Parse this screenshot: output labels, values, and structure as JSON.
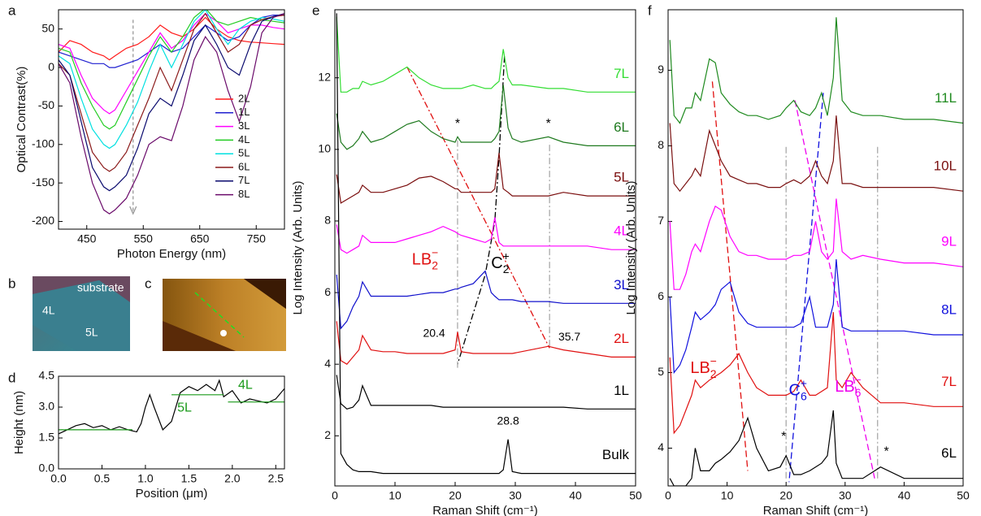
{
  "chart_data": [
    {
      "type": "line",
      "panel": "a",
      "xlabel": "Photon Energy (nm)",
      "ylabel": "Optical Contrast(%)",
      "xlim": [
        400,
        800
      ],
      "ylim": [
        -210,
        75
      ],
      "xticks": [
        450,
        550,
        650,
        750
      ],
      "yticks": [
        -200,
        -150,
        -100,
        -50,
        0,
        50
      ],
      "legend": "right",
      "x": [
        400,
        420,
        440,
        460,
        480,
        490,
        500,
        520,
        540,
        560,
        580,
        600,
        620,
        640,
        660,
        680,
        700,
        720,
        740,
        760,
        780,
        800
      ],
      "series": [
        {
          "name": "2L",
          "color": "#ff1a1a",
          "values": [
            20,
            35,
            30,
            20,
            15,
            10,
            15,
            25,
            30,
            40,
            55,
            45,
            40,
            50,
            65,
            50,
            40,
            35,
            33,
            32,
            31,
            30
          ]
        },
        {
          "name": "1L",
          "color": "#1f1fd0",
          "values": [
            20,
            15,
            10,
            5,
            5,
            0,
            0,
            5,
            10,
            20,
            30,
            20,
            25,
            40,
            55,
            45,
            35,
            40,
            55,
            65,
            68,
            68
          ]
        },
        {
          "name": "3L",
          "color": "#ff00ff",
          "values": [
            30,
            25,
            -10,
            -40,
            -55,
            -60,
            -55,
            -30,
            -5,
            20,
            45,
            25,
            35,
            55,
            70,
            60,
            45,
            50,
            55,
            55,
            52,
            50
          ]
        },
        {
          "name": "4L",
          "color": "#22cc22",
          "values": [
            25,
            20,
            -20,
            -50,
            -75,
            -80,
            -75,
            -45,
            -15,
            15,
            40,
            20,
            40,
            65,
            77,
            60,
            55,
            60,
            65,
            62,
            60,
            58
          ]
        },
        {
          "name": "5L",
          "color": "#00e0e0",
          "values": [
            15,
            5,
            -40,
            -80,
            -100,
            -105,
            -100,
            -75,
            -45,
            -5,
            30,
            0,
            30,
            60,
            75,
            50,
            30,
            50,
            60,
            65,
            63,
            60
          ]
        },
        {
          "name": "6L",
          "color": "#8b1a1a",
          "values": [
            5,
            -10,
            -60,
            -110,
            -130,
            -135,
            -130,
            -110,
            -75,
            -40,
            0,
            -30,
            10,
            50,
            70,
            45,
            20,
            30,
            55,
            62,
            66,
            68
          ]
        },
        {
          "name": "7L",
          "color": "#0a0a6e",
          "values": [
            10,
            -10,
            -70,
            -130,
            -155,
            -160,
            -155,
            -140,
            -105,
            -60,
            -40,
            -50,
            -10,
            35,
            55,
            30,
            0,
            -10,
            30,
            60,
            66,
            70
          ]
        },
        {
          "name": "8L",
          "color": "#6a0a6a",
          "values": [
            5,
            -20,
            -90,
            -150,
            -185,
            -190,
            -185,
            -170,
            -140,
            -100,
            -90,
            -95,
            -50,
            10,
            40,
            20,
            -30,
            -70,
            -25,
            45,
            65,
            70
          ]
        }
      ]
    },
    {
      "type": "line",
      "panel": "d",
      "xlabel": "Position (μm)",
      "ylabel": "Height (nm)",
      "xlim": [
        0,
        2.6
      ],
      "ylim": [
        0,
        4.5
      ],
      "xticks": [
        {
          "value": 0,
          "label": "0.0"
        },
        {
          "value": 0.5,
          "label": "0.5"
        },
        {
          "value": 1,
          "label": "1.0"
        },
        {
          "value": 1.5,
          "label": "1.5"
        },
        {
          "value": 2,
          "label": "2.0"
        },
        {
          "value": 2.5,
          "label": "2.5"
        }
      ],
      "yticks": [
        {
          "value": 0,
          "label": "0.0"
        },
        {
          "value": 1.5,
          "label": "1.5"
        },
        {
          "value": 3,
          "label": "3.0"
        },
        {
          "value": 4.5,
          "label": "4.5"
        }
      ],
      "x": [
        0,
        0.1,
        0.2,
        0.3,
        0.4,
        0.5,
        0.6,
        0.7,
        0.8,
        0.9,
        0.95,
        1.0,
        1.05,
        1.1,
        1.2,
        1.3,
        1.4,
        1.5,
        1.6,
        1.7,
        1.8,
        1.85,
        1.9,
        2.0,
        2.1,
        2.2,
        2.3,
        2.4,
        2.5,
        2.6
      ],
      "series": [
        {
          "color": "#000000",
          "values": [
            1.7,
            1.9,
            2.1,
            2.2,
            2.0,
            2.1,
            1.9,
            2.05,
            1.9,
            1.8,
            2.2,
            3.0,
            3.6,
            3.0,
            1.9,
            2.3,
            3.7,
            4.0,
            3.8,
            4.1,
            3.8,
            4.3,
            3.5,
            3.8,
            3.2,
            3.4,
            3.3,
            3.2,
            3.4,
            3.9
          ]
        },
        {
          "color": "#1a9a1a",
          "x": [
            0,
            0.85
          ],
          "values": [
            1.9,
            1.9
          ]
        },
        {
          "color": "#1a9a1a",
          "x": [
            1.3,
            1.9
          ],
          "values": [
            3.6,
            3.6
          ]
        },
        {
          "color": "#1a9a1a",
          "x": [
            1.95,
            2.6
          ],
          "values": [
            3.25,
            3.25
          ]
        }
      ],
      "annotations": [
        {
          "text": "5L",
          "color": "#1a9a1a"
        },
        {
          "text": "4L",
          "color": "#1a9a1a"
        }
      ]
    },
    {
      "type": "line",
      "panel": "e",
      "xlabel": "Raman Shift (cm⁻¹)",
      "ylabel": "Log Intensity (Arb. Units)",
      "xlim": [
        0,
        50
      ],
      "ylim": [
        0.6,
        13.9
      ],
      "xticks": [
        0,
        10,
        20,
        30,
        40,
        50
      ],
      "yticks": [
        2,
        4,
        6,
        8,
        10,
        12
      ],
      "series_labels": "right",
      "x": [
        0.3,
        1,
        2,
        3,
        4,
        4.6,
        6,
        8,
        10,
        12,
        14,
        16,
        18,
        20,
        20.4,
        21,
        23,
        25,
        26,
        26.6,
        27.3,
        28,
        28.8,
        29.5,
        31,
        35.5,
        38,
        42,
        46,
        50
      ],
      "series": [
        {
          "name": "7L",
          "color": "#33dd33",
          "values": [
            13.7,
            11.6,
            11.6,
            11.7,
            11.7,
            11.9,
            11.8,
            11.9,
            12.1,
            12.3,
            12.0,
            11.8,
            11.7,
            11.7,
            11.7,
            11.7,
            11.8,
            11.7,
            11.7,
            11.8,
            11.9,
            12.8,
            12.0,
            11.8,
            11.8,
            11.7,
            11.7,
            11.6,
            11.6,
            11.6
          ]
        },
        {
          "name": "6L",
          "color": "#1f7a1f",
          "values": [
            11,
            10.2,
            10.0,
            10.1,
            10.3,
            10.5,
            10.2,
            10.3,
            10.5,
            10.7,
            10.8,
            10.5,
            10.3,
            10.2,
            10.35,
            10.2,
            10.2,
            10.2,
            10.2,
            10.3,
            10.5,
            11.8,
            10.6,
            10.3,
            10.2,
            10.35,
            10.2,
            10.1,
            10.1,
            10.1
          ]
        },
        {
          "name": "5L",
          "color": "#7a0d0d",
          "values": [
            9.3,
            8.5,
            8.6,
            8.7,
            8.8,
            9.0,
            8.8,
            8.8,
            8.9,
            9.0,
            9.2,
            9.25,
            9.1,
            8.9,
            8.9,
            8.8,
            8.8,
            8.8,
            8.8,
            8.9,
            9.9,
            8.9,
            8.8,
            8.7,
            8.7,
            8.7,
            8.8,
            8.7,
            8.7,
            8.7
          ]
        },
        {
          "name": "4L",
          "color": "#ff00ff",
          "values": [
            7.9,
            7.2,
            7.1,
            7.2,
            7.3,
            7.6,
            7.4,
            7.4,
            7.4,
            7.5,
            7.6,
            7.7,
            7.85,
            7.7,
            7.65,
            7.6,
            7.5,
            7.4,
            7.5,
            8.1,
            7.4,
            7.3,
            7.3,
            7.3,
            7.3,
            7.3,
            7.3,
            7.3,
            7.2,
            7.2
          ]
        },
        {
          "name": "3L",
          "color": "#1010cc",
          "values": [
            6.5,
            5.0,
            5.2,
            5.6,
            5.9,
            6.3,
            5.9,
            5.9,
            5.9,
            5.9,
            5.95,
            6.0,
            6.0,
            6.1,
            6.1,
            6.15,
            6.25,
            6.6,
            6.0,
            5.9,
            5.8,
            5.8,
            5.8,
            5.8,
            5.75,
            5.75,
            5.7,
            5.7,
            5.7,
            5.7
          ]
        },
        {
          "name": "2L",
          "color": "#e01010",
          "values": [
            5.2,
            4.1,
            4.0,
            4.2,
            4.4,
            4.8,
            4.4,
            4.35,
            4.35,
            4.3,
            4.3,
            4.3,
            4.3,
            4.4,
            4.9,
            4.35,
            4.3,
            4.3,
            4.3,
            4.3,
            4.3,
            4.3,
            4.3,
            4.3,
            4.35,
            4.5,
            4.4,
            4.3,
            4.2,
            4.2
          ]
        },
        {
          "name": "1L",
          "color": "#000000",
          "values": [
            3.7,
            2.9,
            2.75,
            2.8,
            3.0,
            3.4,
            2.85,
            2.85,
            2.85,
            2.85,
            2.85,
            2.85,
            2.8,
            2.8,
            2.8,
            2.8,
            2.8,
            2.8,
            2.8,
            2.8,
            2.8,
            2.8,
            2.8,
            2.8,
            2.8,
            2.8,
            2.8,
            2.75,
            2.75,
            2.75
          ]
        },
        {
          "name": "Bulk",
          "color": "#000000",
          "values": [
            13.8,
            1.5,
            1.2,
            1.05,
            1.0,
            1.0,
            1.0,
            0.95,
            0.95,
            0.95,
            0.95,
            0.95,
            0.95,
            0.95,
            0.95,
            0.95,
            0.95,
            0.95,
            0.95,
            0.95,
            0.95,
            1.05,
            1.9,
            1.0,
            0.95,
            0.95,
            0.95,
            0.95,
            0.95,
            0.95
          ]
        }
      ],
      "annotations": [
        {
          "text": "*",
          "color": "#000000"
        },
        {
          "text": "*",
          "color": "#000000"
        },
        {
          "text": "20.4",
          "color": "#000000"
        },
        {
          "text": "35.7",
          "color": "#000000"
        },
        {
          "text": "28.8",
          "color": "#000000"
        },
        {
          "base": "LB",
          "sub": "2",
          "sup": "−",
          "color": "#e01010"
        },
        {
          "base": "C",
          "sub": "2",
          "sup": "+",
          "color": "#000000"
        }
      ]
    },
    {
      "type": "line",
      "panel": "f",
      "xlabel": "Raman Shift (cm⁻¹)",
      "ylabel": "Log Intensity (Arb. Units)",
      "xlim": [
        0,
        50
      ],
      "ylim": [
        3.5,
        9.8
      ],
      "xticks": [
        0,
        10,
        20,
        30,
        40,
        50
      ],
      "yticks": [
        4,
        5,
        6,
        7,
        8,
        9
      ],
      "series_labels": "right",
      "x": [
        0.3,
        1,
        2,
        3,
        4,
        4.6,
        5.5,
        7,
        8,
        9,
        10.5,
        12,
        13.5,
        15,
        17,
        19,
        20,
        21.3,
        22.5,
        24,
        25,
        26,
        27,
        28,
        28.5,
        29.5,
        31,
        33,
        36,
        40,
        45,
        50
      ],
      "series": [
        {
          "name": "11L",
          "color": "#1f8a1f",
          "values": [
            9.4,
            8.4,
            8.3,
            8.5,
            8.5,
            8.7,
            8.6,
            9.15,
            9.1,
            8.7,
            8.55,
            8.45,
            8.4,
            8.4,
            8.35,
            8.4,
            8.5,
            8.6,
            8.45,
            8.4,
            8.5,
            8.7,
            8.4,
            8.9,
            9.7,
            8.6,
            8.45,
            8.4,
            8.4,
            8.35,
            8.35,
            8.3
          ]
        },
        {
          "name": "10L",
          "color": "#7a1010",
          "values": [
            8.3,
            7.5,
            7.4,
            7.5,
            7.6,
            7.7,
            7.6,
            8.2,
            8.0,
            7.8,
            7.6,
            7.55,
            7.5,
            7.5,
            7.45,
            7.45,
            7.5,
            7.55,
            7.5,
            7.6,
            7.8,
            7.6,
            7.5,
            7.8,
            8.4,
            7.5,
            7.5,
            7.45,
            7.45,
            7.45,
            7.45,
            7.4
          ]
        },
        {
          "name": "9L",
          "color": "#ff00ff",
          "values": [
            7.0,
            6.1,
            6.1,
            6.3,
            6.6,
            6.7,
            6.6,
            7.0,
            7.2,
            7.15,
            6.8,
            6.6,
            6.55,
            6.55,
            6.5,
            6.5,
            6.5,
            6.55,
            6.55,
            6.6,
            7.0,
            6.6,
            6.5,
            6.6,
            7.3,
            6.6,
            6.5,
            6.55,
            6.5,
            6.45,
            6.45,
            6.4
          ]
        },
        {
          "name": "8L",
          "color": "#1010dd",
          "values": [
            6.0,
            5.0,
            5.1,
            5.3,
            5.6,
            5.8,
            5.7,
            5.8,
            5.9,
            6.1,
            6.2,
            5.8,
            5.65,
            5.6,
            5.6,
            5.6,
            5.6,
            5.6,
            5.65,
            6.0,
            5.6,
            5.6,
            5.6,
            5.9,
            6.5,
            5.6,
            5.55,
            5.55,
            5.55,
            5.55,
            5.5,
            5.5
          ]
        },
        {
          "name": "7L",
          "color": "#e01010",
          "values": [
            5.2,
            4.2,
            4.3,
            4.5,
            4.7,
            4.9,
            4.8,
            4.9,
            4.95,
            5.0,
            5.1,
            5.25,
            5.0,
            4.8,
            4.7,
            4.7,
            4.7,
            4.75,
            4.9,
            4.7,
            4.7,
            4.75,
            4.8,
            5.8,
            4.9,
            4.8,
            5.0,
            4.8,
            4.6,
            4.6,
            4.55,
            4.55
          ]
        },
        {
          "name": "6L",
          "color": "#000000",
          "values": [
            3.6,
            3.5,
            3.5,
            3.5,
            3.6,
            4.0,
            3.7,
            3.7,
            3.8,
            3.85,
            3.95,
            4.1,
            4.4,
            4.0,
            3.7,
            3.75,
            3.9,
            3.65,
            3.65,
            3.7,
            3.75,
            3.8,
            3.9,
            4.5,
            3.8,
            3.6,
            3.6,
            3.6,
            3.75,
            3.6,
            3.6,
            3.6
          ]
        }
      ],
      "annotations": [
        {
          "text": "*",
          "color": "#000000"
        },
        {
          "text": "*",
          "color": "#000000"
        },
        {
          "base": "LB",
          "sub": "2",
          "sup": "−",
          "color": "#e01010"
        },
        {
          "base": "C",
          "sub": "6",
          "sup": "+",
          "color": "#1010dd"
        },
        {
          "base": "LB",
          "sub": "6",
          "sup": "−",
          "color": "#ee00ee"
        }
      ]
    }
  ],
  "images": [
    {
      "panel": "b",
      "labels": [
        "substrate",
        "4L",
        "5L"
      ]
    },
    {
      "panel": "c"
    }
  ]
}
